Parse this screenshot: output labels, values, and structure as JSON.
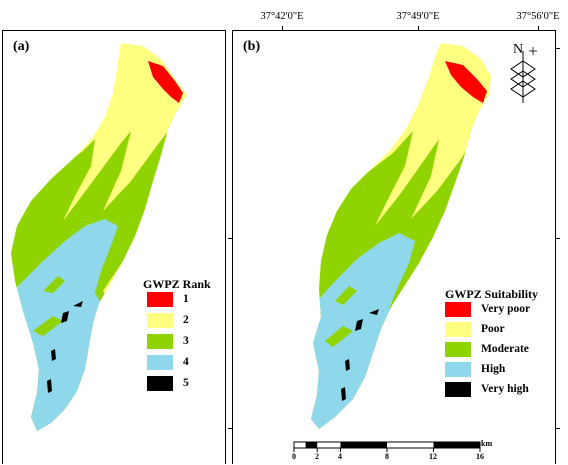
{
  "panels": {
    "a": {
      "label": "(a)"
    },
    "b": {
      "label": "(b)"
    }
  },
  "coordinates": {
    "top_labels": [
      "37°42'0\"E",
      "37°49'0\"E",
      "37°56'0\"E"
    ]
  },
  "legend_a": {
    "title": "GWPZ Rank",
    "items": [
      {
        "label": "1",
        "color": "#ff0000"
      },
      {
        "label": "2",
        "color": "#ffff80"
      },
      {
        "label": "3",
        "color": "#8fd400"
      },
      {
        "label": "4",
        "color": "#8fd8ec"
      },
      {
        "label": "5",
        "color": "#000000"
      }
    ]
  },
  "legend_b": {
    "title": "GWPZ Suitability",
    "items": [
      {
        "label": "Very poor",
        "color": "#ff0000"
      },
      {
        "label": "Poor",
        "color": "#ffff80"
      },
      {
        "label": "Moderate",
        "color": "#8fd400"
      },
      {
        "label": "High",
        "color": "#8fd8ec"
      },
      {
        "label": "Very high",
        "color": "#000000"
      }
    ]
  },
  "scale_bar": {
    "ticks": [
      "0",
      "2",
      "4",
      "8",
      "12",
      "16"
    ],
    "unit": "km"
  },
  "north_arrow": {
    "label": "N"
  }
}
